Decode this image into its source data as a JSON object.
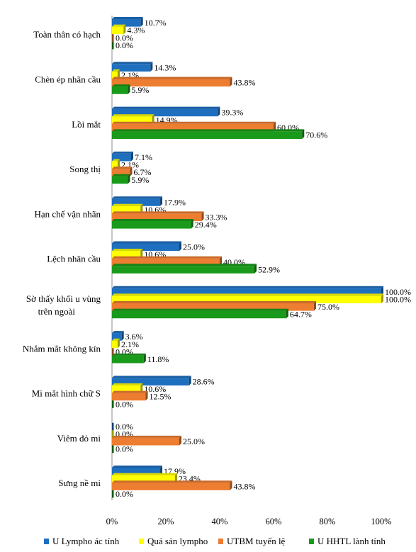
{
  "chart_data": {
    "type": "bar",
    "orientation": "horizontal",
    "categories": [
      "Toàn thân có hạch",
      "Chèn ép nhãn cầu",
      "Lồi mắt",
      "Song thị",
      "Hạn chế vận nhãn",
      "Lệch nhãn cầu",
      "Sờ thấy khối u vùng trên ngoài",
      "Nhắm mắt không kín",
      "Mi mắt hình chữ S",
      "Viêm đỏ mi",
      "Sưng nề mi"
    ],
    "series": [
      {
        "name": "U Lympho ác tính",
        "color": "#1f6fbf",
        "values": [
          10.7,
          14.3,
          39.3,
          7.1,
          17.9,
          25.0,
          100.0,
          3.6,
          28.6,
          0.0,
          17.9
        ]
      },
      {
        "name": "Quá sản lympho",
        "color": "#ffff00",
        "values": [
          4.3,
          2.1,
          14.9,
          2.1,
          10.6,
          10.6,
          100.0,
          2.1,
          10.6,
          0.0,
          23.4
        ]
      },
      {
        "name": "UTBM  tuyến lệ",
        "color": "#ed7d31",
        "values": [
          0.0,
          43.8,
          60.0,
          6.7,
          33.3,
          40.0,
          75.0,
          0.0,
          12.5,
          25.0,
          43.8
        ]
      },
      {
        "name": "U HHTL lành tính",
        "color": "#1a9a1a",
        "values": [
          0.0,
          5.9,
          70.6,
          5.9,
          29.4,
          52.9,
          64.7,
          11.8,
          0.0,
          0.0,
          0.0
        ]
      }
    ],
    "value_labels": [
      [
        "10.7%",
        "14.3%",
        "39.3%",
        "7.1%",
        "17.9%",
        "25.0%",
        "100.0%",
        "3.6%",
        "28.6%",
        "0.0%",
        "17.9%"
      ],
      [
        "4.3%",
        "2.1%",
        "14.9%",
        "2.1%",
        "10.6%",
        "10.6%",
        "100.0%",
        "2.1%",
        "10.6%",
        "0.0%",
        "23.4%"
      ],
      [
        "0.0%",
        "43.8%",
        "60.0%",
        "6.7%",
        "33.3%",
        "40.0%",
        "75.0%",
        "0.0%",
        "12.5%",
        "25.0%",
        "43.8%"
      ],
      [
        "0.0%",
        "5.9%",
        "70.6%",
        "5.9%",
        "29.4%",
        "52.9%",
        "64.7%",
        "11.8%",
        "0.0%",
        "0.0%",
        "0.0%"
      ]
    ],
    "x_ticks": [
      "0%",
      "20%",
      "40%",
      "60%",
      "80%",
      "100%"
    ],
    "xlim": [
      0,
      100
    ],
    "title": "",
    "xlabel": "",
    "ylabel": "",
    "grid": false,
    "legend_position": "bottom"
  }
}
